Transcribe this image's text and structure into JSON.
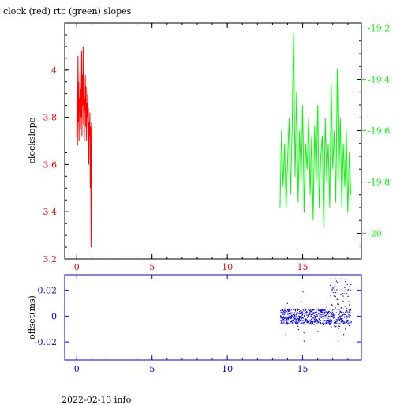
{
  "title": "clock (red) rtc (green) slopes",
  "footer": "2022-02-13 info",
  "colors": {
    "clock": "#ff0000",
    "rtc": "#00ff00",
    "offset": "#0000ff",
    "frame": "#000000"
  },
  "chart_data": [
    {
      "type": "line",
      "title": "clock (red) rtc (green) slopes",
      "xlim": [
        -0.8,
        18.9
      ],
      "x_ticks": [
        "0",
        "5",
        "10",
        "15"
      ],
      "y_left": {
        "label": "clockslope",
        "lim": [
          3.2,
          4.2
        ],
        "ticks": [
          "3.2",
          "3.4",
          "3.6",
          "3.8",
          "4"
        ]
      },
      "y_right": {
        "lim": [
          -20.1,
          -19.18
        ],
        "ticks": [
          "-20",
          "-19.8",
          "-19.6",
          "-19.4",
          "-19.2"
        ]
      },
      "series": [
        {
          "axis": "left",
          "x": [
            0.0,
            0.03,
            0.05,
            0.08,
            0.1,
            0.12,
            0.15,
            0.17,
            0.2,
            0.22,
            0.25,
            0.27,
            0.3,
            0.32,
            0.35,
            0.37,
            0.4,
            0.42,
            0.45,
            0.47,
            0.5,
            0.52,
            0.55,
            0.57,
            0.6,
            0.62,
            0.65,
            0.67,
            0.7,
            0.72,
            0.75,
            0.77,
            0.8,
            0.82,
            0.85,
            0.87,
            0.9,
            0.92,
            0.95,
            0.98,
            1.0
          ],
          "y": [
            3.72,
            3.9,
            3.68,
            4.06,
            3.78,
            3.95,
            3.7,
            3.88,
            3.82,
            4.0,
            3.75,
            3.92,
            3.8,
            4.08,
            3.72,
            3.98,
            3.85,
            4.1,
            3.77,
            3.95,
            3.7,
            3.88,
            3.83,
            3.98,
            3.76,
            3.93,
            3.7,
            3.86,
            3.8,
            3.9,
            3.74,
            3.84,
            3.6,
            3.78,
            3.72,
            3.82,
            3.5,
            3.76,
            3.25,
            3.78,
            3.7
          ]
        },
        {
          "axis": "right",
          "x": [
            13.5,
            13.6,
            13.7,
            13.8,
            13.9,
            14.0,
            14.1,
            14.2,
            14.3,
            14.4,
            14.5,
            14.6,
            14.7,
            14.8,
            14.9,
            15.0,
            15.1,
            15.2,
            15.3,
            15.4,
            15.5,
            15.6,
            15.7,
            15.8,
            15.9,
            16.0,
            16.1,
            16.2,
            16.3,
            16.4,
            16.5,
            16.6,
            16.7,
            16.8,
            16.9,
            17.0,
            17.1,
            17.2,
            17.3,
            17.4,
            17.5,
            17.6,
            17.7,
            17.8,
            17.9,
            18.0,
            18.1,
            18.2
          ],
          "y": [
            -19.9,
            -19.6,
            -19.82,
            -19.65,
            -19.9,
            -19.72,
            -19.55,
            -19.85,
            -19.6,
            -19.22,
            -19.78,
            -19.45,
            -19.88,
            -19.6,
            -19.8,
            -19.5,
            -19.92,
            -19.65,
            -19.75,
            -19.55,
            -19.85,
            -19.62,
            -19.95,
            -19.58,
            -19.8,
            -19.5,
            -19.9,
            -19.7,
            -19.62,
            -19.98,
            -19.55,
            -19.8,
            -19.65,
            -19.9,
            -19.42,
            -19.75,
            -19.6,
            -19.88,
            -19.36,
            -19.8,
            -19.55,
            -19.9,
            -19.65,
            -19.82,
            -19.6,
            -19.92,
            -19.68,
            -19.85
          ]
        }
      ]
    },
    {
      "type": "scatter",
      "ylabel": "offset(ms)",
      "xlim": [
        -0.8,
        18.9
      ],
      "ylim": [
        -0.034,
        0.032
      ],
      "x_ticks": [
        "0",
        "5",
        "10",
        "15"
      ],
      "y_ticks": [
        "-0.02",
        "0",
        "0.02"
      ],
      "x_range": [
        13.5,
        18.2
      ],
      "band": [
        -0.006,
        0.006
      ],
      "noisy_from": 16.8,
      "noisy_band": [
        -0.01,
        0.03
      ]
    }
  ]
}
